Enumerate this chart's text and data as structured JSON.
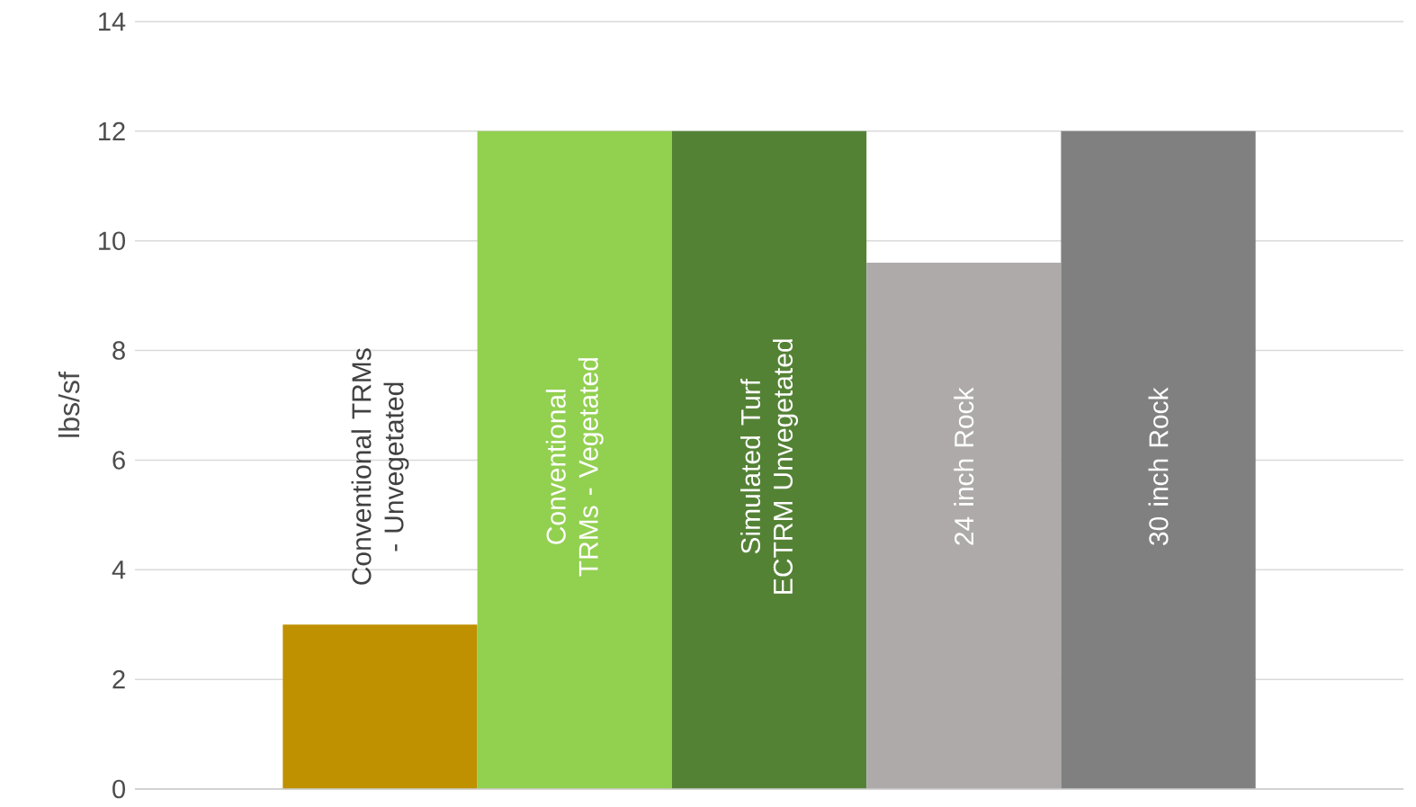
{
  "chart_data": {
    "type": "bar",
    "ylabel": "lbs/sf",
    "categories": [
      "Conventional TRMs - Unvegetated",
      "Conventional TRMs - Vegetated",
      "Simulated Turf ECTRM Unvegetated",
      "24 inch Rock",
      "30 inch Rock"
    ],
    "values": [
      3,
      12,
      12,
      9.6,
      12
    ],
    "colors": [
      "#bf9000",
      "#92d050",
      "#548235",
      "#aeaaaa",
      "#808080"
    ],
    "ylim": [
      0,
      14
    ],
    "yticks": [
      0,
      2,
      4,
      6,
      8,
      10,
      12,
      14
    ],
    "grid": "y"
  }
}
